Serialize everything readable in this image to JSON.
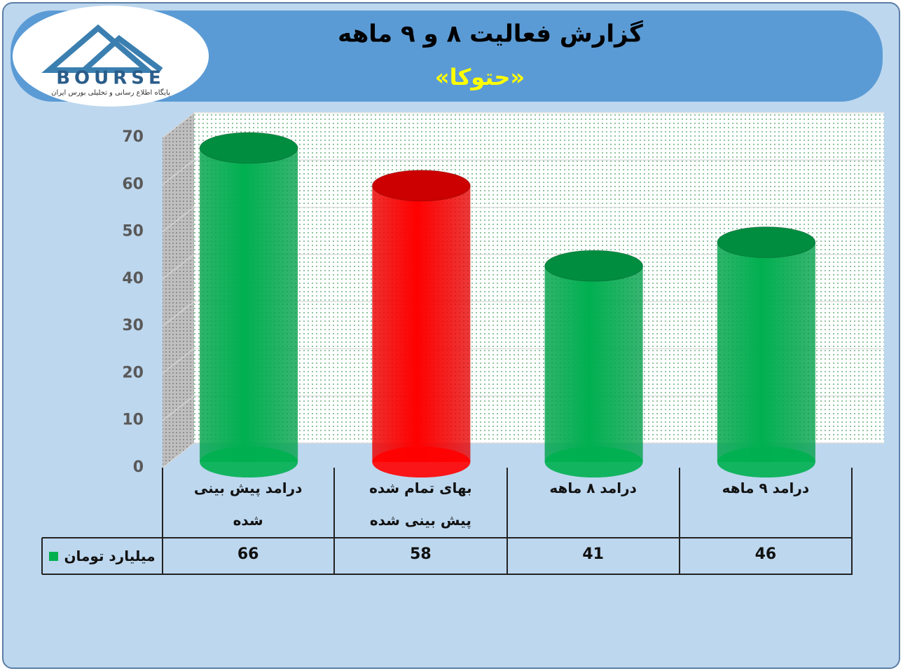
{
  "logo": {
    "name": "BOURSE",
    "tagline": "پایگاه اطلاع رسانی و تحلیلی بورس ایران"
  },
  "chart_data": {
    "type": "bar",
    "title": "گزارش فعالیت ۸ و ۹ ماهه",
    "subtitle": "«حتوکا»",
    "categories": [
      "درامد پیش بینی شده",
      "بهای تمام شده پیش بینی شده",
      "درامد ۸ ماهه",
      "درامد ۹ ماهه"
    ],
    "series": [
      {
        "name": "میلیارد تومان",
        "color": "#00b050",
        "values": [
          66,
          58,
          41,
          46
        ],
        "colors": [
          "#00b050",
          "#ff0000",
          "#00b050",
          "#00b050"
        ]
      }
    ],
    "ylim": [
      0,
      70
    ],
    "yticks": [
      0,
      10,
      20,
      30,
      40,
      50,
      60,
      70
    ],
    "grid": true
  }
}
